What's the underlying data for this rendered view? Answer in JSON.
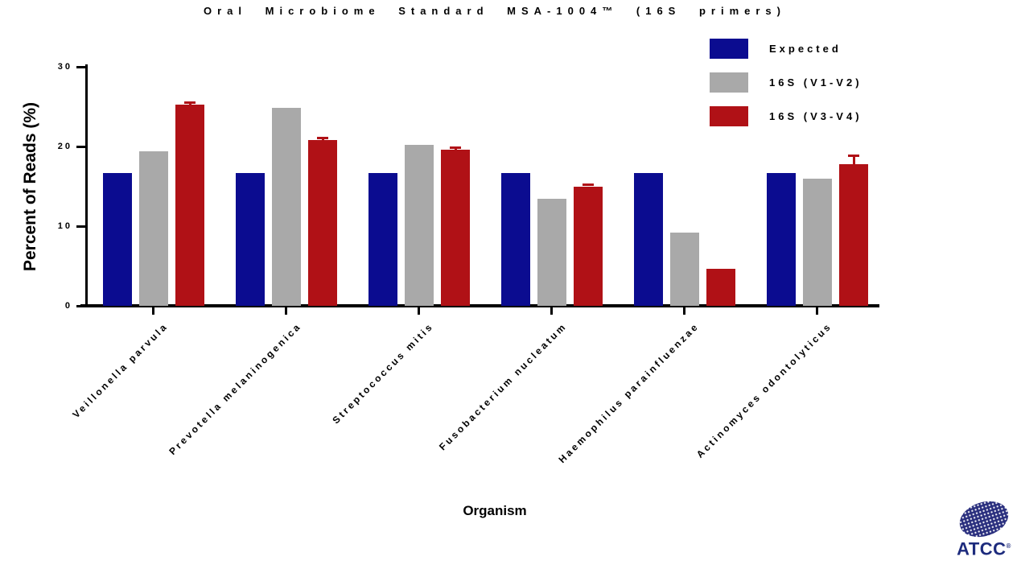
{
  "chart_data": {
    "type": "bar",
    "title": "Oral Microbiome Standard MSA-1004™ (16S primers)",
    "xlabel": "Organism",
    "ylabel": "Percent of Reads (%)",
    "ylim": [
      0,
      30
    ],
    "yticks": [
      0,
      10,
      20,
      30
    ],
    "grid": false,
    "legend_position": "top-right",
    "categories": [
      "Veillonella parvula",
      "Prevotella melaninogenica",
      "Streptococcus mitis",
      "Fusobacterium nucleatum",
      "Haemophilus parainfluenzae",
      "Actinomyces odontolyticus"
    ],
    "series": [
      {
        "name": "Expected",
        "color": "#0b0c90",
        "values": [
          16.7,
          16.7,
          16.7,
          16.7,
          16.7,
          16.7
        ],
        "errors": [
          0,
          0,
          0,
          0,
          0,
          0
        ]
      },
      {
        "name": "16S (V1-V2)",
        "color": "#a9a9a9",
        "values": [
          19.4,
          24.8,
          20.2,
          13.4,
          9.2,
          16.0
        ],
        "errors": [
          0,
          0,
          0,
          0,
          0,
          0
        ]
      },
      {
        "name": "16S (V3-V4)",
        "color": "#b01116",
        "values": [
          25.3,
          20.8,
          19.6,
          15.0,
          4.6,
          17.8
        ],
        "errors": [
          0.3,
          0.3,
          0.3,
          0.25,
          0,
          1.1
        ]
      }
    ]
  },
  "logo": {
    "text": "ATCC",
    "reg_mark": "®"
  }
}
